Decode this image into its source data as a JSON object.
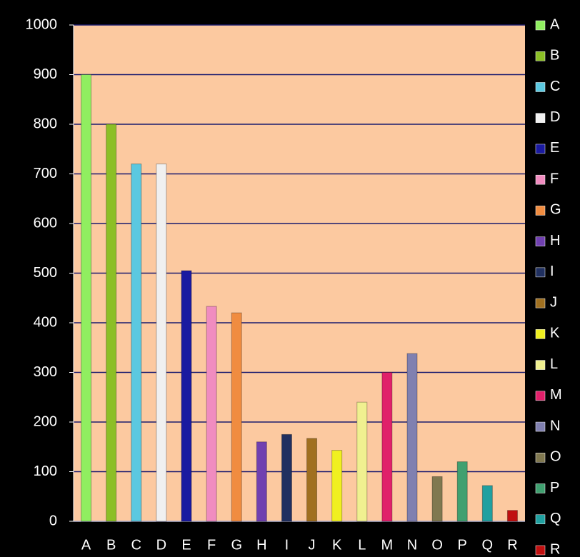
{
  "chart_data": {
    "type": "bar",
    "categories": [
      "A",
      "B",
      "C",
      "D",
      "E",
      "F",
      "G",
      "H",
      "I",
      "J",
      "K",
      "L",
      "M",
      "N",
      "O",
      "P",
      "Q",
      "R"
    ],
    "values": [
      900,
      800,
      720,
      720,
      505,
      433,
      420,
      160,
      175,
      167,
      143,
      240,
      300,
      338,
      90,
      120,
      72,
      22
    ],
    "colors": [
      "#90ee60",
      "#8cbf26",
      "#5bc8e0",
      "#f0f0f0",
      "#1a1aa0",
      "#f08cc0",
      "#f08c40",
      "#7040b0",
      "#203060",
      "#a07020",
      "#f0f020",
      "#f0f090",
      "#e0206a",
      "#8080b0",
      "#807850",
      "#40a070",
      "#20a0a0",
      "#c01010"
    ],
    "ylim": [
      0,
      1000
    ],
    "yticks": [
      0,
      100,
      200,
      300,
      400,
      500,
      600,
      700,
      800,
      900,
      1000
    ],
    "grid": true,
    "legend": "right"
  }
}
